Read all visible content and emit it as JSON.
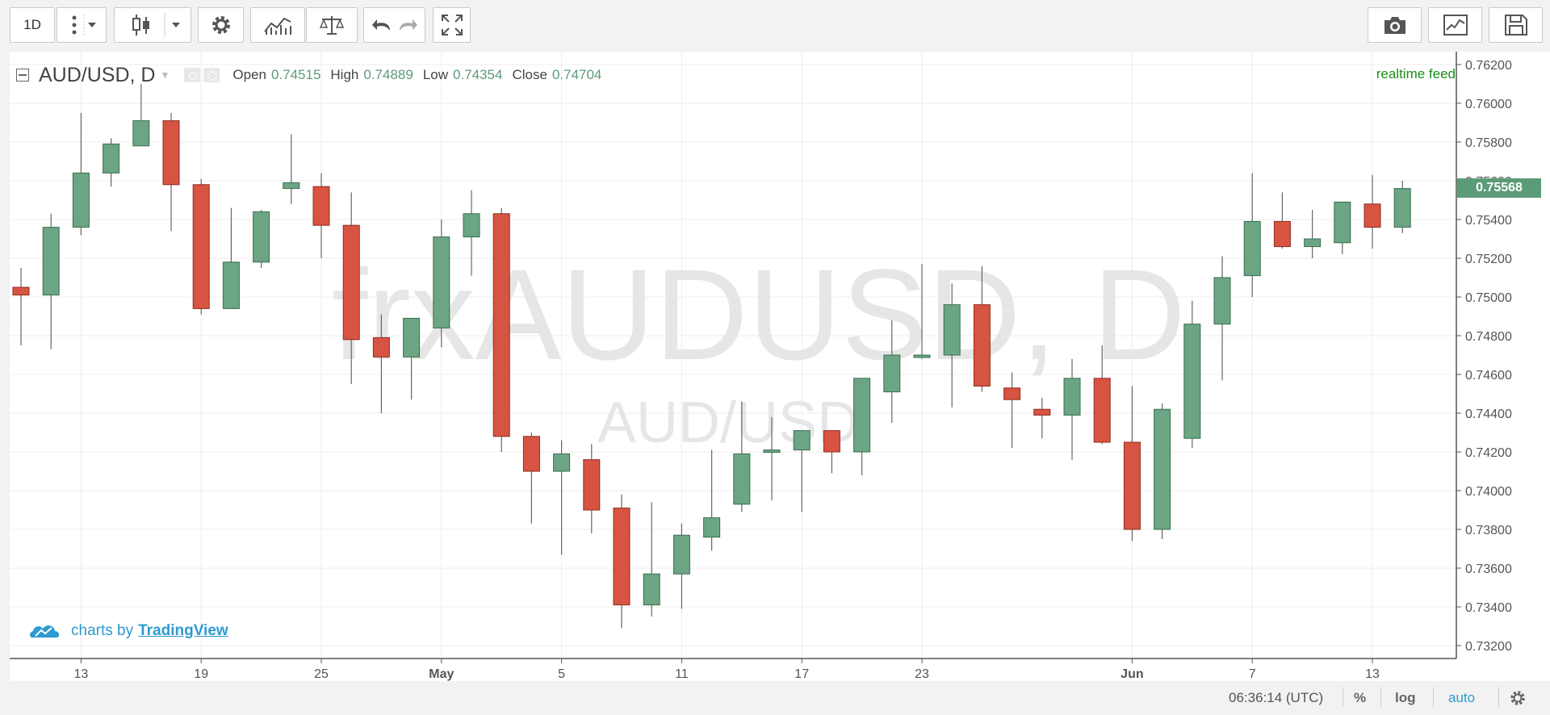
{
  "toolbar": {
    "interval_label": "1D"
  },
  "legend": {
    "symbol": "AUD/USD, D",
    "open_label": "Open",
    "open_value": "0.74515",
    "high_label": "High",
    "high_value": "0.74889",
    "low_label": "Low",
    "low_value": "0.74354",
    "close_label": "Close",
    "close_value": "0.74704"
  },
  "watermark": {
    "main": "frxAUDUSD, D",
    "sub": "AUD/USD"
  },
  "realtime_label": "realtime feed",
  "credit": {
    "prefix": "charts by",
    "brand": "TradingView"
  },
  "last_price": "0.75568",
  "bottom": {
    "time": "06:36:14 (UTC)",
    "percent": "%",
    "log": "log",
    "auto": "auto"
  },
  "colors": {
    "up": "#6ba583",
    "down": "#d75442",
    "accent": "#2e9ad0"
  },
  "chart_data": {
    "type": "candlestick",
    "y_range": [
      0.7315,
      0.7625
    ],
    "y_ticks": [
      "0.76200",
      "0.76000",
      "0.75800",
      "0.75600",
      "0.75400",
      "0.75200",
      "0.75000",
      "0.74800",
      "0.74600",
      "0.74400",
      "0.74200",
      "0.74000",
      "0.73800",
      "0.73600",
      "0.73400",
      "0.73200"
    ],
    "x_tick_labels": [
      "13",
      "19",
      "25",
      "May",
      "5",
      "11",
      "17",
      "23",
      "Jun",
      "7",
      "13"
    ],
    "x_tick_index": [
      2,
      6,
      10,
      14,
      18,
      22,
      26,
      30,
      37,
      41,
      45
    ],
    "candles": [
      {
        "o": 0.7505,
        "h": 0.7515,
        "l": 0.7475,
        "c": 0.7501
      },
      {
        "o": 0.7501,
        "h": 0.7543,
        "l": 0.7473,
        "c": 0.7536
      },
      {
        "o": 0.7536,
        "h": 0.7595,
        "l": 0.7532,
        "c": 0.7564
      },
      {
        "o": 0.7564,
        "h": 0.7582,
        "l": 0.7557,
        "c": 0.7579
      },
      {
        "o": 0.7578,
        "h": 0.761,
        "l": 0.7578,
        "c": 0.7591
      },
      {
        "o": 0.7591,
        "h": 0.7595,
        "l": 0.7534,
        "c": 0.7558
      },
      {
        "o": 0.7558,
        "h": 0.7561,
        "l": 0.7491,
        "c": 0.7494
      },
      {
        "o": 0.7494,
        "h": 0.7546,
        "l": 0.7494,
        "c": 0.7518
      },
      {
        "o": 0.7518,
        "h": 0.7545,
        "l": 0.7515,
        "c": 0.7544
      },
      {
        "o": 0.7556,
        "h": 0.7584,
        "l": 0.7548,
        "c": 0.7559
      },
      {
        "o": 0.7557,
        "h": 0.7564,
        "l": 0.752,
        "c": 0.7537
      },
      {
        "o": 0.7537,
        "h": 0.7554,
        "l": 0.7455,
        "c": 0.7478
      },
      {
        "o": 0.7479,
        "h": 0.7491,
        "l": 0.744,
        "c": 0.7469
      },
      {
        "o": 0.7469,
        "h": 0.7489,
        "l": 0.7447,
        "c": 0.7489
      },
      {
        "o": 0.7484,
        "h": 0.754,
        "l": 0.7474,
        "c": 0.7531
      },
      {
        "o": 0.7531,
        "h": 0.7555,
        "l": 0.7511,
        "c": 0.7543
      },
      {
        "o": 0.7543,
        "h": 0.7546,
        "l": 0.742,
        "c": 0.7428
      },
      {
        "o": 0.7428,
        "h": 0.743,
        "l": 0.7383,
        "c": 0.741
      },
      {
        "o": 0.741,
        "h": 0.7426,
        "l": 0.7367,
        "c": 0.7419
      },
      {
        "o": 0.7416,
        "h": 0.7424,
        "l": 0.7378,
        "c": 0.739
      },
      {
        "o": 0.7391,
        "h": 0.7398,
        "l": 0.7329,
        "c": 0.7341
      },
      {
        "o": 0.7341,
        "h": 0.7394,
        "l": 0.7335,
        "c": 0.7357
      },
      {
        "o": 0.7357,
        "h": 0.7383,
        "l": 0.7339,
        "c": 0.7377
      },
      {
        "o": 0.7376,
        "h": 0.7421,
        "l": 0.7369,
        "c": 0.7386
      },
      {
        "o": 0.7393,
        "h": 0.7446,
        "l": 0.7389,
        "c": 0.7419
      },
      {
        "o": 0.742,
        "h": 0.7438,
        "l": 0.7395,
        "c": 0.7421
      },
      {
        "o": 0.7421,
        "h": 0.7431,
        "l": 0.7389,
        "c": 0.7431
      },
      {
        "o": 0.7431,
        "h": 0.7431,
        "l": 0.7409,
        "c": 0.742
      },
      {
        "o": 0.742,
        "h": 0.7458,
        "l": 0.7408,
        "c": 0.7458
      },
      {
        "o": 0.7451,
        "h": 0.7488,
        "l": 0.7435,
        "c": 0.747
      },
      {
        "o": 0.7469,
        "h": 0.7517,
        "l": 0.7468,
        "c": 0.747
      },
      {
        "o": 0.747,
        "h": 0.7507,
        "l": 0.7443,
        "c": 0.7496
      },
      {
        "o": 0.7496,
        "h": 0.7516,
        "l": 0.7451,
        "c": 0.7454
      },
      {
        "o": 0.7453,
        "h": 0.7461,
        "l": 0.7422,
        "c": 0.7447
      },
      {
        "o": 0.7442,
        "h": 0.7448,
        "l": 0.7427,
        "c": 0.7439
      },
      {
        "o": 0.7439,
        "h": 0.7468,
        "l": 0.7416,
        "c": 0.7458
      },
      {
        "o": 0.7458,
        "h": 0.7475,
        "l": 0.7424,
        "c": 0.7425
      },
      {
        "o": 0.7425,
        "h": 0.7454,
        "l": 0.7374,
        "c": 0.738
      },
      {
        "o": 0.738,
        "h": 0.7445,
        "l": 0.7375,
        "c": 0.7442
      },
      {
        "o": 0.7427,
        "h": 0.7498,
        "l": 0.7422,
        "c": 0.7486
      },
      {
        "o": 0.7486,
        "h": 0.7521,
        "l": 0.7457,
        "c": 0.751
      },
      {
        "o": 0.7511,
        "h": 0.7564,
        "l": 0.75,
        "c": 0.7539
      },
      {
        "o": 0.7539,
        "h": 0.7554,
        "l": 0.7525,
        "c": 0.7526
      },
      {
        "o": 0.7526,
        "h": 0.7545,
        "l": 0.752,
        "c": 0.753
      },
      {
        "o": 0.7528,
        "h": 0.7549,
        "l": 0.7522,
        "c": 0.7549
      },
      {
        "o": 0.7548,
        "h": 0.7563,
        "l": 0.7525,
        "c": 0.7536
      },
      {
        "o": 0.7536,
        "h": 0.756,
        "l": 0.7533,
        "c": 0.7556
      }
    ]
  }
}
